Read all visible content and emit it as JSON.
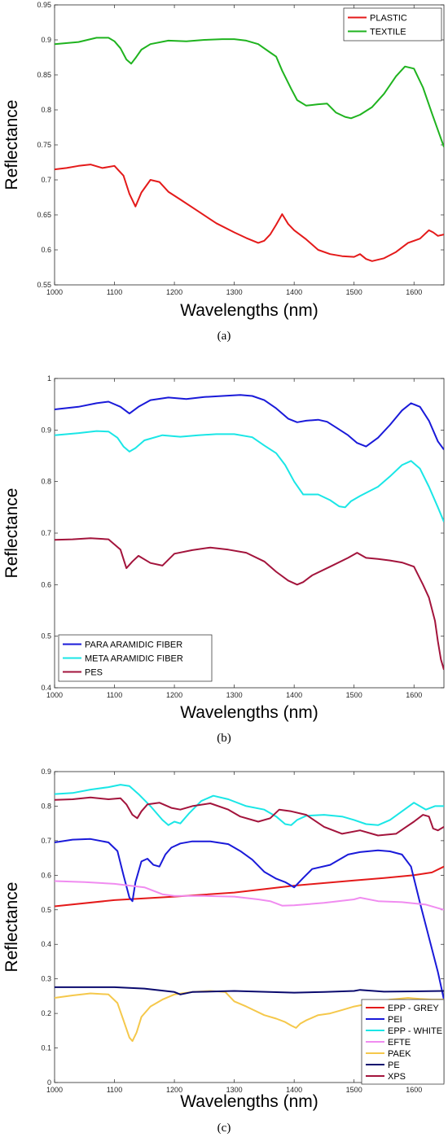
{
  "chart_data": [
    {
      "type": "line",
      "xlabel": "Wavelengths (nm)",
      "ylabel": "Reflectance",
      "caption": "(a)",
      "xlim": [
        1000,
        1650
      ],
      "ylim": [
        0.55,
        0.95
      ],
      "xticks": [
        1000,
        1100,
        1200,
        1300,
        1400,
        1500,
        1600
      ],
      "xtick_labels": [
        "1000",
        "1100",
        "1200",
        "1300",
        "1400",
        "1500",
        "1600"
      ],
      "yticks": [
        0.55,
        0.6,
        0.65,
        0.7,
        0.75,
        0.8,
        0.85,
        0.9,
        0.95
      ],
      "ytick_labels": [
        "0.55",
        "0.6",
        "0.65",
        "0.7",
        "0.75",
        "0.8",
        "0.85",
        "0.9",
        "0.95"
      ],
      "legend_position": "top-right",
      "series": [
        {
          "name": "PLASTIC",
          "color": "#e41a1a",
          "x": [
            1000,
            1020,
            1040,
            1060,
            1080,
            1100,
            1115,
            1125,
            1135,
            1145,
            1160,
            1175,
            1190,
            1210,
            1240,
            1270,
            1300,
            1320,
            1340,
            1350,
            1360,
            1370,
            1380,
            1390,
            1400,
            1420,
            1440,
            1460,
            1480,
            1500,
            1510,
            1520,
            1530,
            1550,
            1570,
            1590,
            1610,
            1625,
            1632,
            1640,
            1650
          ],
          "y": [
            0.715,
            0.717,
            0.72,
            0.722,
            0.717,
            0.72,
            0.706,
            0.68,
            0.662,
            0.682,
            0.7,
            0.697,
            0.683,
            0.672,
            0.655,
            0.638,
            0.625,
            0.617,
            0.61,
            0.613,
            0.622,
            0.636,
            0.651,
            0.637,
            0.628,
            0.615,
            0.6,
            0.594,
            0.591,
            0.59,
            0.594,
            0.587,
            0.584,
            0.588,
            0.597,
            0.61,
            0.616,
            0.628,
            0.625,
            0.62,
            0.622
          ]
        },
        {
          "name": "TEXTILE",
          "color": "#1fb31f",
          "x": [
            1000,
            1040,
            1070,
            1090,
            1100,
            1110,
            1120,
            1128,
            1135,
            1145,
            1160,
            1190,
            1220,
            1250,
            1280,
            1300,
            1320,
            1340,
            1360,
            1370,
            1380,
            1395,
            1405,
            1420,
            1440,
            1455,
            1470,
            1485,
            1495,
            1510,
            1530,
            1550,
            1570,
            1585,
            1600,
            1615,
            1630,
            1650
          ],
          "y": [
            0.894,
            0.897,
            0.903,
            0.903,
            0.898,
            0.888,
            0.872,
            0.866,
            0.874,
            0.886,
            0.894,
            0.899,
            0.898,
            0.9,
            0.901,
            0.901,
            0.899,
            0.894,
            0.882,
            0.876,
            0.856,
            0.83,
            0.814,
            0.806,
            0.808,
            0.809,
            0.796,
            0.79,
            0.788,
            0.793,
            0.804,
            0.823,
            0.848,
            0.862,
            0.859,
            0.832,
            0.795,
            0.747
          ]
        }
      ]
    },
    {
      "type": "line",
      "xlabel": "Wavelengths (nm)",
      "ylabel": "Reflectance",
      "caption": "(b)",
      "xlim": [
        1000,
        1650
      ],
      "ylim": [
        0.4,
        1.0
      ],
      "xticks": [
        1000,
        1100,
        1200,
        1300,
        1400,
        1500,
        1600
      ],
      "xtick_labels": [
        "1000",
        "1100",
        "1200",
        "1300",
        "1400",
        "1500",
        "1600"
      ],
      "yticks": [
        0.4,
        0.5,
        0.6,
        0.7,
        0.8,
        0.9,
        1.0
      ],
      "ytick_labels": [
        "0.4",
        "0.5",
        "0.6",
        "0.7",
        "0.8",
        "0.9",
        "1"
      ],
      "legend_position": "bottom-left",
      "series": [
        {
          "name": "PARA ARAMIDIC FIBER",
          "color": "#1a1ad9",
          "x": [
            1000,
            1040,
            1070,
            1090,
            1110,
            1125,
            1140,
            1160,
            1190,
            1220,
            1250,
            1280,
            1310,
            1330,
            1350,
            1370,
            1390,
            1405,
            1420,
            1440,
            1455,
            1470,
            1490,
            1505,
            1520,
            1540,
            1560,
            1580,
            1595,
            1610,
            1625,
            1640,
            1650
          ],
          "y": [
            0.94,
            0.945,
            0.952,
            0.955,
            0.945,
            0.932,
            0.945,
            0.958,
            0.963,
            0.96,
            0.964,
            0.966,
            0.968,
            0.966,
            0.958,
            0.942,
            0.922,
            0.915,
            0.918,
            0.92,
            0.916,
            0.905,
            0.89,
            0.875,
            0.868,
            0.885,
            0.91,
            0.938,
            0.952,
            0.945,
            0.918,
            0.878,
            0.862
          ]
        },
        {
          "name": "META ARAMIDIC FIBER",
          "color": "#1ae6e6",
          "x": [
            1000,
            1040,
            1070,
            1090,
            1105,
            1115,
            1125,
            1135,
            1150,
            1180,
            1210,
            1240,
            1270,
            1300,
            1330,
            1350,
            1370,
            1385,
            1400,
            1415,
            1440,
            1460,
            1475,
            1485,
            1495,
            1510,
            1540,
            1560,
            1580,
            1595,
            1610,
            1625,
            1640,
            1650
          ],
          "y": [
            0.89,
            0.894,
            0.898,
            0.897,
            0.885,
            0.868,
            0.858,
            0.865,
            0.88,
            0.89,
            0.887,
            0.89,
            0.892,
            0.892,
            0.886,
            0.87,
            0.855,
            0.832,
            0.8,
            0.775,
            0.775,
            0.764,
            0.752,
            0.75,
            0.762,
            0.772,
            0.79,
            0.81,
            0.832,
            0.84,
            0.825,
            0.79,
            0.75,
            0.722
          ]
        },
        {
          "name": "PES",
          "color": "#a3143c",
          "x": [
            1000,
            1030,
            1060,
            1090,
            1110,
            1120,
            1130,
            1140,
            1160,
            1180,
            1200,
            1230,
            1260,
            1290,
            1320,
            1350,
            1370,
            1390,
            1405,
            1415,
            1430,
            1460,
            1490,
            1505,
            1520,
            1540,
            1560,
            1580,
            1600,
            1615,
            1625,
            1635,
            1640,
            1645,
            1650
          ],
          "y": [
            0.687,
            0.688,
            0.69,
            0.688,
            0.668,
            0.632,
            0.645,
            0.656,
            0.642,
            0.637,
            0.66,
            0.667,
            0.672,
            0.668,
            0.662,
            0.645,
            0.625,
            0.608,
            0.6,
            0.605,
            0.618,
            0.635,
            0.652,
            0.662,
            0.652,
            0.65,
            0.647,
            0.643,
            0.635,
            0.6,
            0.575,
            0.53,
            0.49,
            0.455,
            0.435
          ]
        }
      ]
    },
    {
      "type": "line",
      "xlabel": "Wavelengths (nm)",
      "ylabel": "Reflectance",
      "caption": "(c)",
      "xlim": [
        1000,
        1650
      ],
      "ylim": [
        0,
        0.9
      ],
      "xticks": [
        1000,
        1100,
        1200,
        1300,
        1400,
        1500,
        1600
      ],
      "xtick_labels": [
        "1000",
        "1100",
        "1200",
        "1300",
        "1400",
        "1500",
        "1600"
      ],
      "yticks": [
        0,
        0.1,
        0.2,
        0.3,
        0.4,
        0.5,
        0.6,
        0.7,
        0.8,
        0.9
      ],
      "ytick_labels": [
        "0",
        "0.1",
        "0.2",
        "0.3",
        "0.4",
        "0.5",
        "0.6",
        "0.7",
        "0.8",
        "0.9"
      ],
      "legend_position": "bottom-right",
      "series": [
        {
          "name": "EPP - GREY",
          "color": "#e41a1a",
          "x": [
            1000,
            1100,
            1200,
            1300,
            1400,
            1500,
            1550,
            1600,
            1630,
            1650
          ],
          "y": [
            0.51,
            0.528,
            0.538,
            0.55,
            0.57,
            0.585,
            0.592,
            0.6,
            0.608,
            0.625
          ]
        },
        {
          "name": "PEI",
          "color": "#1a1ad9",
          "x": [
            1000,
            1030,
            1060,
            1090,
            1105,
            1115,
            1125,
            1130,
            1135,
            1145,
            1155,
            1165,
            1175,
            1185,
            1195,
            1210,
            1230,
            1260,
            1290,
            1310,
            1330,
            1350,
            1370,
            1385,
            1400,
            1415,
            1430,
            1460,
            1490,
            1510,
            1540,
            1560,
            1580,
            1595,
            1610,
            1625,
            1640,
            1650
          ],
          "y": [
            0.695,
            0.703,
            0.705,
            0.695,
            0.67,
            0.6,
            0.535,
            0.525,
            0.58,
            0.64,
            0.648,
            0.63,
            0.625,
            0.66,
            0.68,
            0.692,
            0.698,
            0.698,
            0.69,
            0.67,
            0.645,
            0.61,
            0.59,
            0.58,
            0.565,
            0.592,
            0.618,
            0.63,
            0.66,
            0.667,
            0.672,
            0.669,
            0.66,
            0.625,
            0.52,
            0.42,
            0.32,
            0.24
          ]
        },
        {
          "name": "EPP - WHITE",
          "color": "#1ae6e6",
          "x": [
            1000,
            1030,
            1060,
            1090,
            1110,
            1125,
            1140,
            1160,
            1180,
            1190,
            1200,
            1210,
            1225,
            1245,
            1265,
            1290,
            1320,
            1350,
            1370,
            1385,
            1395,
            1405,
            1420,
            1450,
            1480,
            1500,
            1520,
            1540,
            1560,
            1580,
            1600,
            1620,
            1635,
            1650
          ],
          "y": [
            0.835,
            0.838,
            0.848,
            0.855,
            0.862,
            0.858,
            0.835,
            0.8,
            0.76,
            0.745,
            0.755,
            0.75,
            0.78,
            0.815,
            0.83,
            0.82,
            0.8,
            0.79,
            0.77,
            0.748,
            0.745,
            0.76,
            0.772,
            0.775,
            0.77,
            0.76,
            0.748,
            0.745,
            0.76,
            0.785,
            0.81,
            0.79,
            0.8,
            0.8
          ]
        },
        {
          "name": "EFTE",
          "color": "#f08cf0",
          "x": [
            1000,
            1050,
            1100,
            1150,
            1180,
            1200,
            1250,
            1300,
            1340,
            1360,
            1380,
            1400,
            1450,
            1500,
            1510,
            1540,
            1580,
            1620,
            1640,
            1650
          ],
          "y": [
            0.583,
            0.58,
            0.575,
            0.565,
            0.545,
            0.54,
            0.54,
            0.538,
            0.53,
            0.525,
            0.512,
            0.513,
            0.52,
            0.53,
            0.535,
            0.525,
            0.522,
            0.515,
            0.505,
            0.5
          ]
        },
        {
          "name": "PAEK",
          "color": "#f5c84b",
          "x": [
            1000,
            1030,
            1060,
            1090,
            1105,
            1115,
            1125,
            1130,
            1137,
            1145,
            1160,
            1180,
            1200,
            1230,
            1260,
            1285,
            1300,
            1320,
            1350,
            1370,
            1385,
            1395,
            1403,
            1410,
            1420,
            1440,
            1460,
            1480,
            1500,
            1530,
            1560,
            1590,
            1610,
            1630,
            1650
          ],
          "y": [
            0.245,
            0.252,
            0.258,
            0.255,
            0.23,
            0.18,
            0.13,
            0.12,
            0.145,
            0.19,
            0.22,
            0.24,
            0.255,
            0.262,
            0.265,
            0.262,
            0.235,
            0.22,
            0.195,
            0.185,
            0.175,
            0.165,
            0.158,
            0.17,
            0.18,
            0.195,
            0.2,
            0.21,
            0.22,
            0.23,
            0.24,
            0.245,
            0.242,
            0.24,
            0.24
          ]
        },
        {
          "name": "PE",
          "color": "#0a0a6e",
          "x": [
            1000,
            1100,
            1150,
            1200,
            1210,
            1230,
            1300,
            1400,
            1450,
            1500,
            1510,
            1550,
            1650
          ],
          "y": [
            0.276,
            0.276,
            0.272,
            0.262,
            0.255,
            0.262,
            0.265,
            0.26,
            0.262,
            0.265,
            0.268,
            0.263,
            0.265
          ]
        },
        {
          "name": "XPS",
          "color": "#a3143c",
          "x": [
            1000,
            1030,
            1060,
            1090,
            1110,
            1120,
            1130,
            1138,
            1145,
            1155,
            1175,
            1195,
            1210,
            1230,
            1260,
            1290,
            1310,
            1340,
            1360,
            1375,
            1395,
            1420,
            1450,
            1480,
            1510,
            1540,
            1570,
            1600,
            1615,
            1625,
            1632,
            1640,
            1650
          ],
          "y": [
            0.818,
            0.82,
            0.825,
            0.82,
            0.823,
            0.805,
            0.775,
            0.765,
            0.785,
            0.805,
            0.81,
            0.795,
            0.79,
            0.8,
            0.808,
            0.79,
            0.77,
            0.755,
            0.765,
            0.79,
            0.785,
            0.775,
            0.74,
            0.72,
            0.73,
            0.715,
            0.72,
            0.755,
            0.775,
            0.77,
            0.735,
            0.73,
            0.74
          ]
        }
      ]
    }
  ]
}
